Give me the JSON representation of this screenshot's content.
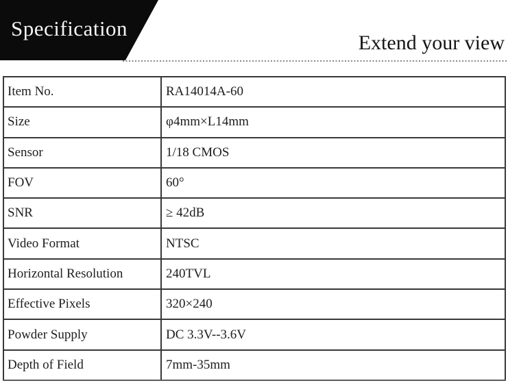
{
  "header": {
    "banner_label": "Specification",
    "tagline": "Extend your view"
  },
  "table": {
    "rows": [
      {
        "label": "Item No.",
        "value": "RA14014A-60"
      },
      {
        "label": "Size",
        "value": "φ4mm×L14mm"
      },
      {
        "label": "Sensor",
        "value": "1/18 CMOS"
      },
      {
        "label": "FOV",
        "value": "60°"
      },
      {
        "label": "SNR",
        "value": "≥ 42dB"
      },
      {
        "label": "Video Format",
        "value": "NTSC"
      },
      {
        "label": "Horizontal Resolution",
        "value": "240TVL"
      },
      {
        "label": "Effective Pixels",
        "value": "320×240"
      },
      {
        "label": "Powder Supply",
        "value": "DC 3.3V--3.6V"
      },
      {
        "label": "Depth of Field",
        "value": "7mm-35mm"
      }
    ]
  },
  "colors": {
    "banner_background": "#0b0b0b",
    "banner_text": "#f4f4f4",
    "table_border": "#383838",
    "body_text": "#1d1d1d",
    "dotted_divider": "#858585"
  }
}
